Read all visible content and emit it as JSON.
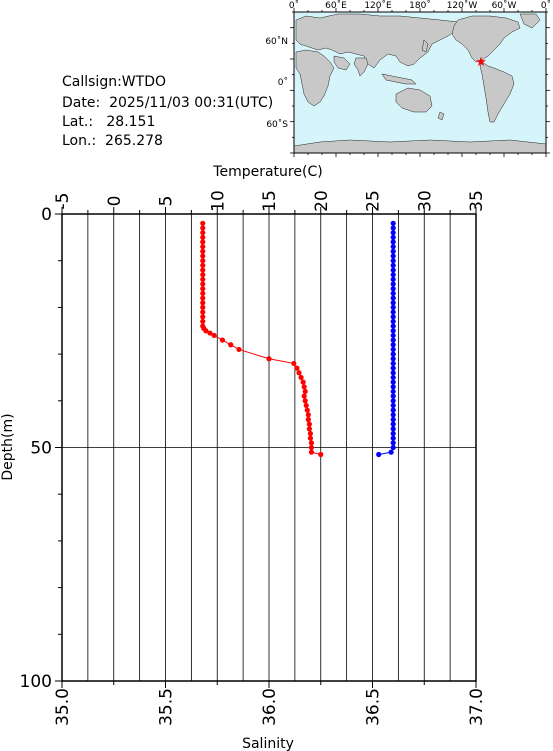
{
  "info": {
    "callsign": "Callsign:WTDO",
    "date": "Date:  2025/11/03 00:31(UTC)",
    "lat": "Lat.:   28.151",
    "lon": "Lon.:  265.278"
  },
  "map": {
    "top_labels": [
      "0˚",
      "60˚E",
      "120˚E",
      "180˚",
      "120˚W",
      "60˚W",
      "0˚"
    ],
    "left_labels": [
      "60˚N",
      "0˚",
      "60˚S"
    ],
    "ocean_color": "#d6f5fb",
    "land_color": "#c8c8c8",
    "marker": "star-icon",
    "marker_color": "#ff0000"
  },
  "chart_data": {
    "type": "line",
    "top_axis": {
      "label": "Temperature(C)",
      "range": [
        -5,
        35
      ],
      "ticks": [
        "-5",
        "0",
        "5",
        "10",
        "15",
        "20",
        "25",
        "30",
        "35"
      ]
    },
    "bottom_axis": {
      "label": "Salinity",
      "range": [
        35.0,
        37.0
      ],
      "ticks": [
        "35.0",
        "35.5",
        "36.0",
        "36.5",
        "37.0"
      ]
    },
    "y_axis": {
      "label": "Depth(m)",
      "range": [
        0,
        100
      ],
      "ticks": [
        "0",
        "50",
        "100"
      ]
    },
    "grid": true,
    "series": [
      {
        "axis": "temperature",
        "color": "#ff0000",
        "connected": true,
        "points": [
          [
            8.6,
            2
          ],
          [
            8.6,
            3
          ],
          [
            8.6,
            4
          ],
          [
            8.6,
            5
          ],
          [
            8.6,
            6
          ],
          [
            8.6,
            7
          ],
          [
            8.6,
            8
          ],
          [
            8.6,
            9
          ],
          [
            8.6,
            10
          ],
          [
            8.6,
            11
          ],
          [
            8.6,
            12
          ],
          [
            8.6,
            13
          ],
          [
            8.6,
            14
          ],
          [
            8.6,
            15
          ],
          [
            8.6,
            16
          ],
          [
            8.6,
            17
          ],
          [
            8.6,
            18
          ],
          [
            8.6,
            19
          ],
          [
            8.6,
            20
          ],
          [
            8.6,
            21
          ],
          [
            8.6,
            22
          ],
          [
            8.6,
            23
          ],
          [
            8.6,
            24
          ],
          [
            8.7,
            24.5
          ],
          [
            8.9,
            25
          ],
          [
            9.3,
            25.5
          ],
          [
            9.7,
            26
          ],
          [
            10.5,
            27
          ],
          [
            11.3,
            28
          ],
          [
            12.1,
            29
          ],
          [
            15.0,
            31
          ],
          [
            17.4,
            32
          ],
          [
            17.7,
            33
          ],
          [
            17.9,
            34
          ],
          [
            18.1,
            35
          ],
          [
            18.3,
            36
          ],
          [
            18.4,
            37
          ],
          [
            18.5,
            38
          ],
          [
            18.4,
            39
          ],
          [
            18.5,
            40
          ],
          [
            18.6,
            41
          ],
          [
            18.7,
            42
          ],
          [
            18.8,
            43
          ],
          [
            18.8,
            44
          ],
          [
            18.9,
            45
          ],
          [
            18.9,
            46
          ],
          [
            19.0,
            47
          ],
          [
            19.0,
            48
          ],
          [
            19.1,
            49
          ],
          [
            19.1,
            50
          ],
          [
            19.1,
            51
          ],
          [
            20.0,
            51.5
          ]
        ]
      },
      {
        "axis": "salinity",
        "color": "#0000ff",
        "connected": true,
        "points": [
          [
            36.6,
            2
          ],
          [
            36.6,
            3
          ],
          [
            36.6,
            4
          ],
          [
            36.6,
            5
          ],
          [
            36.6,
            6
          ],
          [
            36.6,
            7
          ],
          [
            36.6,
            8
          ],
          [
            36.6,
            9
          ],
          [
            36.6,
            10
          ],
          [
            36.6,
            11
          ],
          [
            36.6,
            12
          ],
          [
            36.6,
            13
          ],
          [
            36.6,
            14
          ],
          [
            36.6,
            15
          ],
          [
            36.6,
            16
          ],
          [
            36.6,
            17
          ],
          [
            36.6,
            18
          ],
          [
            36.6,
            19
          ],
          [
            36.6,
            20
          ],
          [
            36.6,
            21
          ],
          [
            36.6,
            22
          ],
          [
            36.6,
            23
          ],
          [
            36.6,
            24
          ],
          [
            36.6,
            25
          ],
          [
            36.6,
            26
          ],
          [
            36.6,
            27
          ],
          [
            36.6,
            28
          ],
          [
            36.6,
            29
          ],
          [
            36.6,
            30
          ],
          [
            36.6,
            31
          ],
          [
            36.6,
            32
          ],
          [
            36.6,
            33
          ],
          [
            36.6,
            34
          ],
          [
            36.6,
            35
          ],
          [
            36.6,
            36
          ],
          [
            36.6,
            37
          ],
          [
            36.6,
            38
          ],
          [
            36.6,
            39
          ],
          [
            36.6,
            40
          ],
          [
            36.6,
            41
          ],
          [
            36.6,
            42
          ],
          [
            36.6,
            43
          ],
          [
            36.6,
            44
          ],
          [
            36.6,
            45
          ],
          [
            36.6,
            46
          ],
          [
            36.6,
            47
          ],
          [
            36.6,
            48
          ],
          [
            36.6,
            49
          ],
          [
            36.6,
            50
          ],
          [
            36.59,
            51
          ],
          [
            36.53,
            51.5
          ]
        ]
      }
    ]
  }
}
